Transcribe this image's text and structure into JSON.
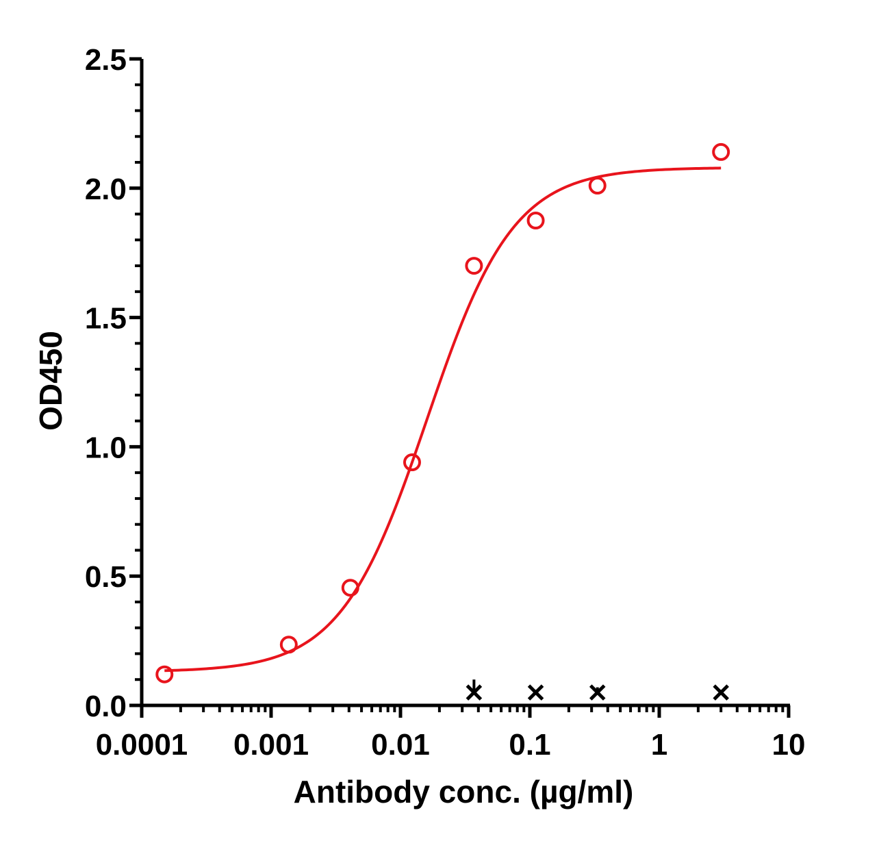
{
  "chart_data": {
    "type": "scatter",
    "title": "",
    "xlabel": "Antibody conc. (µg/ml)",
    "ylabel": "OD450",
    "x_scale": "log",
    "xlim": [
      0.0001,
      10
    ],
    "ylim": [
      0,
      2.5
    ],
    "x_ticks": [
      {
        "value": 0.0001,
        "label": "0.0001"
      },
      {
        "value": 0.001,
        "label": "0.001"
      },
      {
        "value": 0.01,
        "label": "0.01"
      },
      {
        "value": 0.1,
        "label": "0.1"
      },
      {
        "value": 1,
        "label": "1"
      },
      {
        "value": 10,
        "label": "10"
      }
    ],
    "y_ticks": [
      {
        "value": 0,
        "label": "0.0"
      },
      {
        "value": 0.5,
        "label": "0.5"
      },
      {
        "value": 1.0,
        "label": "1.0"
      },
      {
        "value": 1.5,
        "label": "1.5"
      },
      {
        "value": 2.0,
        "label": "2.0"
      },
      {
        "value": 2.5,
        "label": "2.5"
      }
    ],
    "y_minor_step": 0.1,
    "grid": false,
    "legend": "none",
    "series": [
      {
        "marker": "open-circle",
        "color": "#e8141c",
        "points": [
          {
            "x": 0.00015,
            "y": 0.12
          },
          {
            "x": 0.00137,
            "y": 0.235
          },
          {
            "x": 0.0041,
            "y": 0.455
          },
          {
            "x": 0.0123,
            "y": 0.94
          },
          {
            "x": 0.037,
            "y": 1.7
          },
          {
            "x": 0.111,
            "y": 1.875
          },
          {
            "x": 0.333,
            "y": 2.01
          },
          {
            "x": 3.0,
            "y": 2.14
          }
        ],
        "fit": {
          "model": "four-parameter-logistic",
          "color": "#e8141c",
          "bottom": 0.13,
          "top": 2.08,
          "ec50": 0.016,
          "hill": 1.3,
          "x_range": [
            0.00015,
            3.0
          ]
        }
      },
      {
        "marker": "x",
        "color": "#000000",
        "points": [
          {
            "x": 0.037,
            "y": 0.05,
            "error": 0.05
          },
          {
            "x": 0.111,
            "y": 0.05,
            "error": 0.01
          },
          {
            "x": 0.333,
            "y": 0.05,
            "error": 0.02
          },
          {
            "x": 3.0,
            "y": 0.05,
            "error": 0.01
          }
        ]
      }
    ]
  }
}
